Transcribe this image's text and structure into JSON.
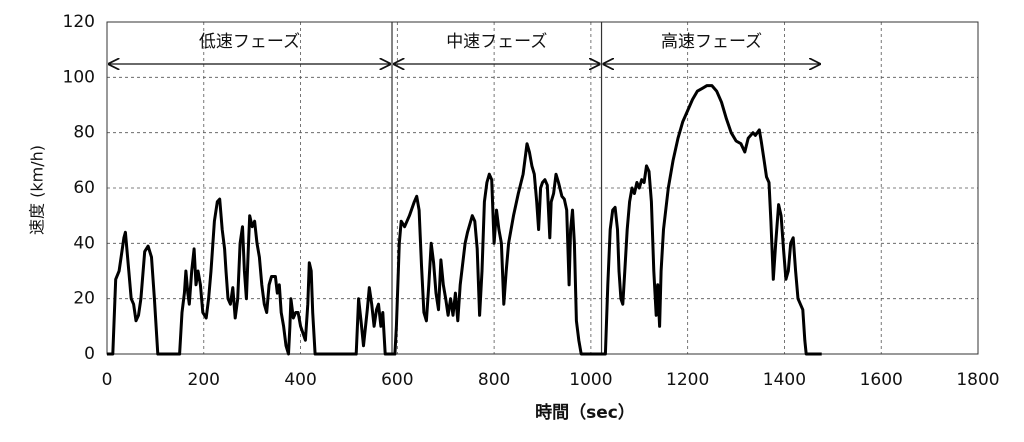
{
  "chart_data": {
    "type": "line",
    "y_label": "速度 (km/h)",
    "x_label": "時間（sec）",
    "color": "#000000",
    "grid": true,
    "xlim": [
      0,
      1800
    ],
    "xticks": [
      0,
      200,
      400,
      600,
      800,
      1000,
      1200,
      1400,
      1600,
      1800
    ],
    "ylim": [
      0,
      120
    ],
    "yticks": [
      0,
      20,
      40,
      60,
      80,
      100,
      120
    ],
    "annotations": [
      {
        "text": "低速フェーズ",
        "x_start": 0,
        "x_end": 589
      },
      {
        "text": "中速フェーズ",
        "x_start": 589,
        "x_end": 1022
      },
      {
        "text": "高速フェーズ",
        "x_start": 1022,
        "x_end": 1477
      }
    ],
    "x": [
      0,
      12,
      18,
      25,
      35,
      38,
      45,
      50,
      55,
      60,
      65,
      70,
      78,
      85,
      92,
      98,
      105,
      150,
      155,
      160,
      163,
      167,
      170,
      175,
      180,
      184,
      188,
      193,
      198,
      205,
      210,
      215,
      222,
      228,
      233,
      238,
      243,
      246,
      250,
      255,
      260,
      265,
      270,
      275,
      280,
      284,
      288,
      292,
      295,
      300,
      305,
      310,
      315,
      320,
      325,
      330,
      335,
      340,
      348,
      352,
      356,
      360,
      365,
      370,
      375,
      378,
      380,
      385,
      390,
      395,
      400,
      410,
      415,
      418,
      422,
      425,
      430,
      515,
      520,
      525,
      530,
      538,
      542,
      547,
      552,
      557,
      561,
      566,
      570,
      575,
      589,
      595,
      598,
      604,
      608,
      615,
      620,
      625,
      635,
      640,
      645,
      650,
      655,
      660,
      665,
      670,
      675,
      680,
      685,
      690,
      695,
      700,
      705,
      710,
      715,
      720,
      725,
      730,
      740,
      745,
      750,
      755,
      760,
      765,
      770,
      775,
      780,
      785,
      790,
      795,
      800,
      805,
      810,
      815,
      820,
      825,
      830,
      840,
      850,
      860,
      868,
      873,
      878,
      883,
      888,
      892,
      896,
      900,
      905,
      910,
      915,
      918,
      923,
      928,
      933,
      940,
      945,
      950,
      955,
      958,
      962,
      966,
      970,
      975,
      980,
      1022,
      1030,
      1035,
      1040,
      1045,
      1050,
      1055,
      1058,
      1062,
      1066,
      1070,
      1075,
      1080,
      1085,
      1090,
      1095,
      1100,
      1105,
      1110,
      1115,
      1120,
      1125,
      1130,
      1135,
      1138,
      1142,
      1145,
      1150,
      1160,
      1170,
      1180,
      1190,
      1200,
      1210,
      1220,
      1230,
      1240,
      1250,
      1260,
      1270,
      1280,
      1290,
      1300,
      1310,
      1318,
      1325,
      1335,
      1340,
      1348,
      1352,
      1358,
      1363,
      1368,
      1372,
      1377,
      1382,
      1388,
      1393,
      1398,
      1403,
      1408,
      1413,
      1418,
      1423,
      1428,
      1433,
      1438,
      1442,
      1445,
      1477
    ],
    "values": [
      0,
      0,
      27,
      30,
      42,
      44,
      30,
      20,
      18,
      12,
      14,
      20,
      37,
      39,
      35,
      20,
      0,
      0,
      15,
      22,
      30,
      22,
      18,
      30,
      38,
      25,
      30,
      25,
      15,
      13,
      20,
      30,
      48,
      55,
      56,
      45,
      38,
      30,
      20,
      18,
      24,
      13,
      20,
      40,
      46,
      30,
      20,
      38,
      50,
      46,
      48,
      40,
      35,
      25,
      18,
      15,
      25,
      28,
      28,
      22,
      25,
      15,
      10,
      3,
      0,
      10,
      20,
      13,
      15,
      15,
      10,
      5,
      18,
      33,
      30,
      15,
      0,
      0,
      20,
      12,
      3,
      16,
      24,
      18,
      10,
      16,
      18,
      10,
      15,
      0,
      0,
      0,
      10,
      40,
      48,
      46,
      48,
      50,
      55,
      57,
      52,
      32,
      15,
      12,
      25,
      40,
      33,
      22,
      16,
      34,
      25,
      20,
      14,
      20,
      14,
      22,
      12,
      25,
      40,
      44,
      47,
      50,
      48,
      38,
      14,
      30,
      55,
      62,
      65,
      63,
      40,
      52,
      45,
      40,
      18,
      30,
      40,
      50,
      58,
      65,
      76,
      73,
      68,
      65,
      55,
      45,
      60,
      62,
      63,
      61,
      42,
      55,
      58,
      65,
      62,
      57,
      56,
      52,
      25,
      45,
      52,
      40,
      12,
      5,
      0,
      0,
      0,
      25,
      45,
      52,
      53,
      45,
      30,
      20,
      18,
      30,
      45,
      55,
      60,
      58,
      62,
      60,
      63,
      62,
      68,
      66,
      55,
      30,
      14,
      25,
      10,
      30,
      45,
      60,
      70,
      78,
      84,
      88,
      92,
      95,
      96,
      97,
      97,
      95,
      91,
      85,
      80,
      77,
      76,
      73,
      78,
      80,
      79,
      81,
      77,
      70,
      64,
      62,
      48,
      27,
      40,
      54,
      50,
      38,
      27,
      30,
      40,
      42,
      30,
      20,
      18,
      16,
      5,
      0,
      0
    ]
  }
}
